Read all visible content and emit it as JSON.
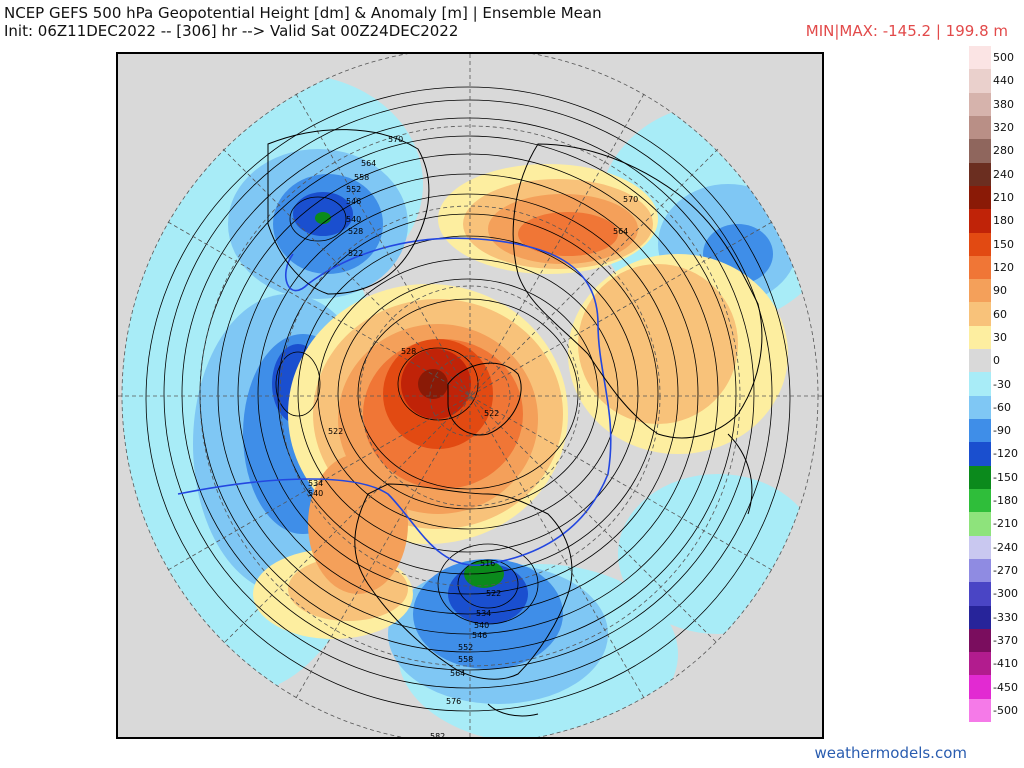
{
  "header": {
    "title": "NCEP GEFS 500 hPa Geopotential Height [dm] & Anomaly [m] | Ensemble Mean",
    "subtitle": "Init: 06Z11DEC2022 -- [306] hr --> Valid Sat 00Z24DEC2022",
    "minmax": "MIN|MAX: -145.2 | 199.8 m"
  },
  "footer": {
    "credit": "weathermodels.com"
  },
  "colorbar": [
    {
      "label": "500",
      "color": "#fbe4e4"
    },
    {
      "label": "440",
      "color": "#ead0cc"
    },
    {
      "label": "380",
      "color": "#d6b3ac"
    },
    {
      "label": "320",
      "color": "#b98f86"
    },
    {
      "label": "280",
      "color": "#8f665d"
    },
    {
      "label": "240",
      "color": "#6b2e20"
    },
    {
      "label": "210",
      "color": "#8a1a06"
    },
    {
      "label": "180",
      "color": "#c02308"
    },
    {
      "label": "150",
      "color": "#e24a12"
    },
    {
      "label": "120",
      "color": "#f07636"
    },
    {
      "label": "90",
      "color": "#f4a05a"
    },
    {
      "label": "60",
      "color": "#f8c27a"
    },
    {
      "label": "30",
      "color": "#fdeea0"
    },
    {
      "label": "0",
      "color": "#d9d9d9"
    },
    {
      "label": "-30",
      "color": "#a8ecf7"
    },
    {
      "label": "-60",
      "color": "#7fc7f4"
    },
    {
      "label": "-90",
      "color": "#3f8ee8"
    },
    {
      "label": "-120",
      "color": "#1a4fcf"
    },
    {
      "label": "-150",
      "color": "#0b8a1c"
    },
    {
      "label": "-180",
      "color": "#2fbe3a"
    },
    {
      "label": "-210",
      "color": "#8ee37c"
    },
    {
      "label": "-240",
      "color": "#c9c8f0"
    },
    {
      "label": "-270",
      "color": "#8f8be2"
    },
    {
      "label": "-300",
      "color": "#4a45c5"
    },
    {
      "label": "-330",
      "color": "#27249a"
    },
    {
      "label": "-370",
      "color": "#7a0d5e"
    },
    {
      "label": "-410",
      "color": "#b21c8e"
    },
    {
      "label": "-450",
      "color": "#e22ad2"
    },
    {
      "label": "-500",
      "color": "#f57ae8"
    }
  ],
  "map": {
    "contour_labels": [
      "570",
      "564",
      "558",
      "552",
      "546",
      "540",
      "534",
      "528",
      "522",
      "522",
      "528",
      "522",
      "534",
      "540",
      "546",
      "516",
      "522",
      "528",
      "534",
      "540",
      "546",
      "552",
      "558",
      "564",
      "570",
      "576",
      "576",
      "582"
    ]
  }
}
